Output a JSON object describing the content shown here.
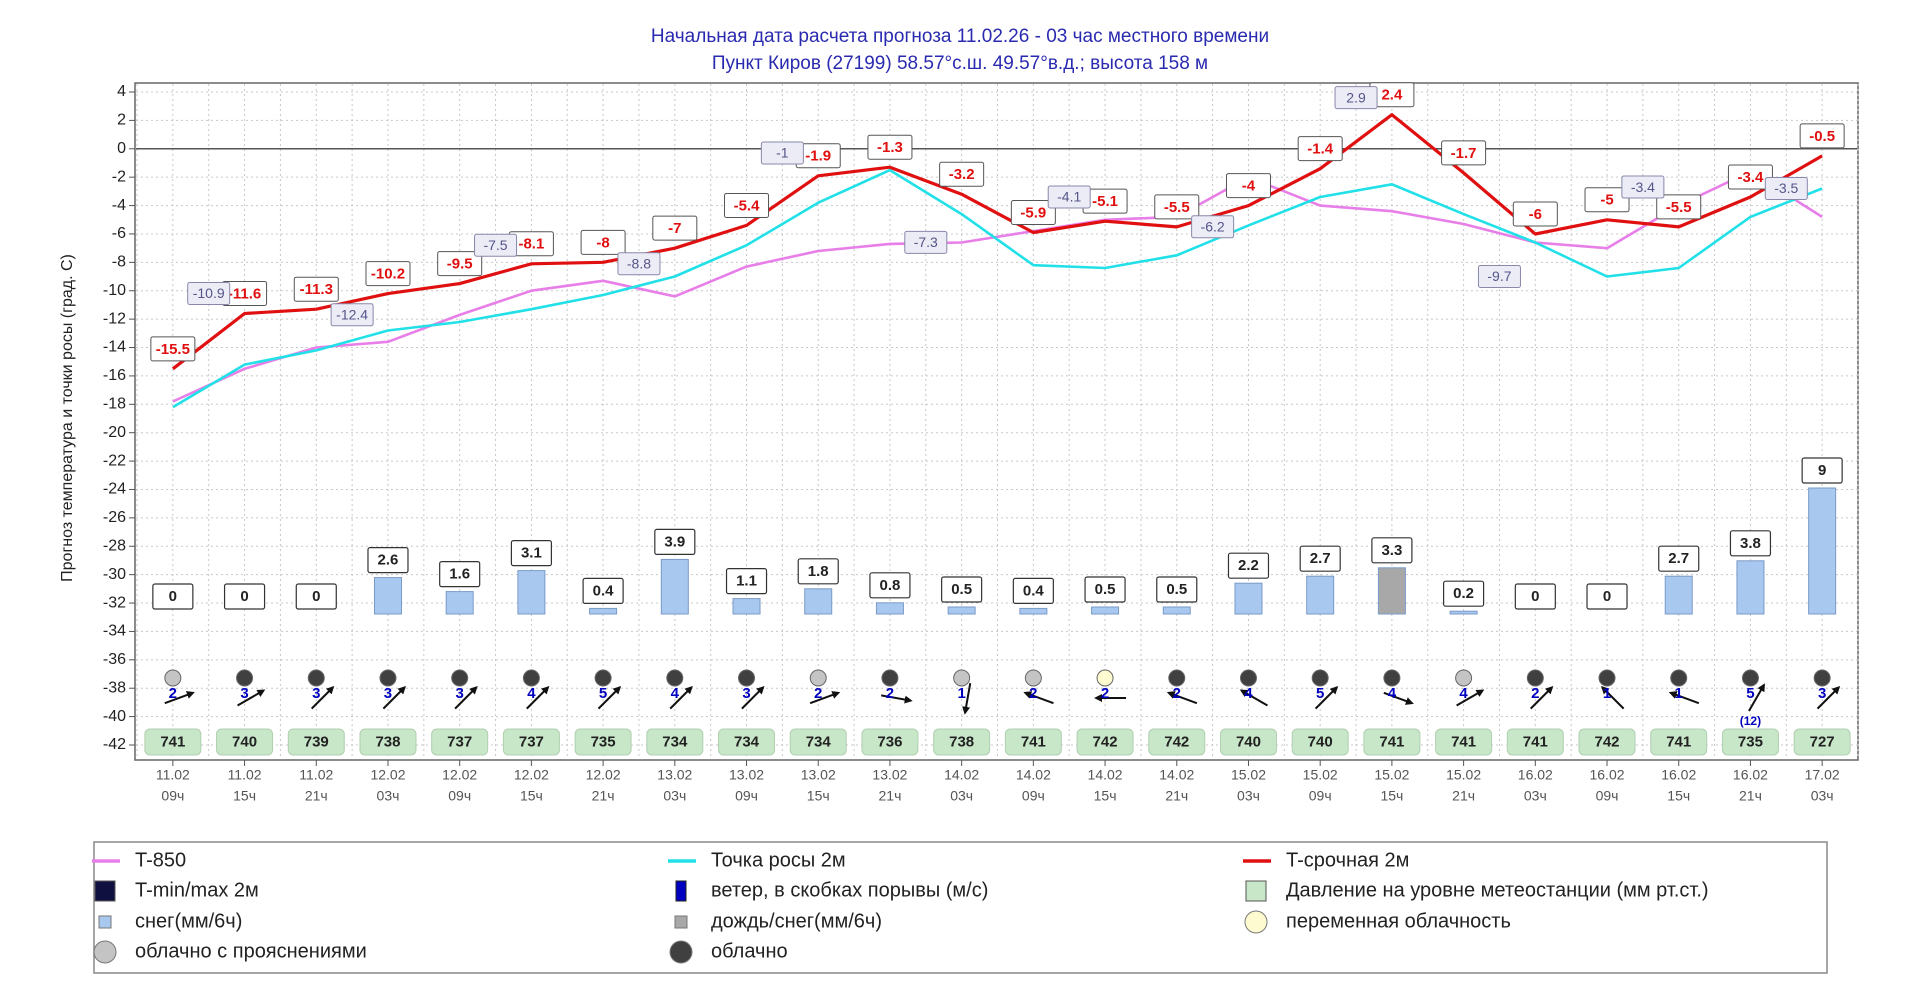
{
  "header": {
    "title": "Начальная дата расчета прогноза 11.02.26 - 03 час местного времени",
    "subtitle": "Пункт  Киров (27199)    58.57°с.ш.   49.57°в.д.; высота 158 м"
  },
  "chart_data": {
    "type": "line",
    "y_label": "Прогноз температура и точки росы (град. С)",
    "categories": [
      [
        "11.02",
        "09ч"
      ],
      [
        "11.02",
        "15ч"
      ],
      [
        "11.02",
        "21ч"
      ],
      [
        "12.02",
        "03ч"
      ],
      [
        "12.02",
        "09ч"
      ],
      [
        "12.02",
        "15ч"
      ],
      [
        "12.02",
        "21ч"
      ],
      [
        "13.02",
        "03ч"
      ],
      [
        "13.02",
        "09ч"
      ],
      [
        "13.02",
        "15ч"
      ],
      [
        "13.02",
        "21ч"
      ],
      [
        "14.02",
        "03ч"
      ],
      [
        "14.02",
        "09ч"
      ],
      [
        "14.02",
        "15ч"
      ],
      [
        "14.02",
        "21ч"
      ],
      [
        "15.02",
        "03ч"
      ],
      [
        "15.02",
        "09ч"
      ],
      [
        "15.02",
        "15ч"
      ],
      [
        "15.02",
        "21ч"
      ],
      [
        "16.02",
        "03ч"
      ],
      [
        "16.02",
        "09ч"
      ],
      [
        "16.02",
        "15ч"
      ],
      [
        "16.02",
        "21ч"
      ],
      [
        "17.02",
        "03ч"
      ]
    ],
    "ylim": [
      -42,
      4
    ],
    "yticks": [
      4,
      2,
      0,
      -2,
      -4,
      -6,
      -8,
      -10,
      -12,
      -14,
      -16,
      -18,
      -20,
      -22,
      -24,
      -26,
      -28,
      -30,
      -32,
      -34,
      -36,
      -38,
      -40,
      -42
    ],
    "grid": true,
    "series": [
      {
        "name": "T-850",
        "color": "#e87ee8",
        "values": [
          -17.8,
          -15.5,
          -14,
          -13.6,
          -11.7,
          -10,
          -9.3,
          -10.4,
          -8.3,
          -7.2,
          -6.7,
          -6.6,
          -5.8,
          -5,
          -4.8,
          -2,
          -4,
          -4.4,
          -5.3,
          -6.6,
          -7,
          -4,
          -1.6,
          -4.8
        ]
      },
      {
        "name": "Точка росы 2м",
        "color": "#22e0e8",
        "values": [
          -18.2,
          -15.2,
          -14.2,
          -12.8,
          -12.2,
          -11.3,
          -10.3,
          -9,
          -6.8,
          -3.8,
          -1.5,
          -4.6,
          -8.2,
          -8.4,
          -7.5,
          -5.4,
          -3.4,
          -2.5,
          -4.6,
          -6.6,
          -9,
          -8.4,
          -4.8,
          -2.8
        ]
      },
      {
        "name": "T-срочная 2м",
        "color": "#e01010",
        "values": [
          -15.5,
          -11.6,
          -11.3,
          -10.2,
          -9.5,
          -8.1,
          -8,
          -7,
          -5.4,
          -1.9,
          -1.3,
          -3.2,
          -5.9,
          -5.1,
          -5.5,
          -4,
          -1.4,
          2.4,
          -1.7,
          -6,
          -5,
          -5.5,
          -3.4,
          -0.5
        ]
      }
    ],
    "tminmax": {
      "name": "T-min/max 2м",
      "color": "#101040",
      "values": [
        -10.9,
        null,
        -12.4,
        null,
        -7.5,
        null,
        -8.8,
        null,
        -1,
        null,
        -7.3,
        null,
        -4.1,
        null,
        -6.2,
        null,
        2.9,
        null,
        -9.7,
        null,
        -3.4,
        null,
        -3.5
      ]
    },
    "wind": {
      "name": "ветер, в скобках порывы (м/с)",
      "color": "#0000c0",
      "values": [
        2,
        3,
        3,
        3,
        3,
        4,
        5,
        4,
        3,
        2,
        2,
        1,
        2,
        2,
        2,
        4,
        5,
        4,
        4,
        2,
        1,
        1,
        5,
        3
      ],
      "gusts": [
        null,
        null,
        null,
        null,
        null,
        null,
        null,
        null,
        null,
        null,
        null,
        null,
        null,
        null,
        null,
        null,
        null,
        null,
        null,
        null,
        null,
        null,
        12,
        null
      ],
      "gust_labels": [
        null,
        null,
        null,
        null,
        null,
        null,
        null,
        null,
        null,
        null,
        null,
        null,
        null,
        null,
        null,
        null,
        null,
        null,
        null,
        null,
        null,
        null,
        "(12)",
        null
      ],
      "angles": [
        -20,
        -30,
        -45,
        -45,
        -45,
        -45,
        -45,
        -45,
        -45,
        -20,
        10,
        100,
        200,
        180,
        200,
        210,
        -45,
        20,
        -30,
        -45,
        225,
        200,
        -60,
        -45
      ]
    },
    "pressure": {
      "name": "Давление на уровне метеостанции (мм рт.ст.)",
      "color": "#c8e6c8",
      "values": [
        741,
        740,
        739,
        738,
        737,
        737,
        735,
        734,
        734,
        734,
        736,
        738,
        741,
        742,
        742,
        740,
        740,
        741,
        741,
        741,
        742,
        741,
        735,
        727
      ]
    },
    "precip": {
      "values": [
        0,
        0,
        0,
        2.6,
        1.6,
        3.1,
        0.4,
        3.9,
        1.1,
        1.8,
        0.8,
        0.5,
        0.4,
        0.5,
        0.5,
        2.2,
        2.7,
        3.3,
        0.2,
        0,
        0,
        2.7,
        3.8,
        9
      ],
      "kinds": [
        0,
        0,
        0,
        0,
        0,
        0,
        0,
        0,
        0,
        0,
        0,
        0,
        0,
        0,
        0,
        0,
        0,
        1,
        0,
        0,
        0,
        0,
        0,
        0
      ],
      "types": [
        {
          "name": "снег(мм/6ч)",
          "color": "#a8c8f0"
        },
        {
          "name": "дождь/снег(мм/6ч)",
          "color": "#a8a8a8"
        }
      ]
    },
    "clouds": {
      "values": [
        1,
        2,
        2,
        2,
        2,
        2,
        2,
        2,
        2,
        1,
        2,
        1,
        1,
        0,
        2,
        2,
        2,
        2,
        1,
        2,
        2,
        2,
        2,
        2
      ],
      "types": [
        {
          "name": "переменная облачность",
          "color": "#fffbd0"
        },
        {
          "name": "облачно с прояснениями",
          "color": "#c4c4c4"
        },
        {
          "name": "облачно",
          "color": "#404040"
        }
      ]
    }
  }
}
